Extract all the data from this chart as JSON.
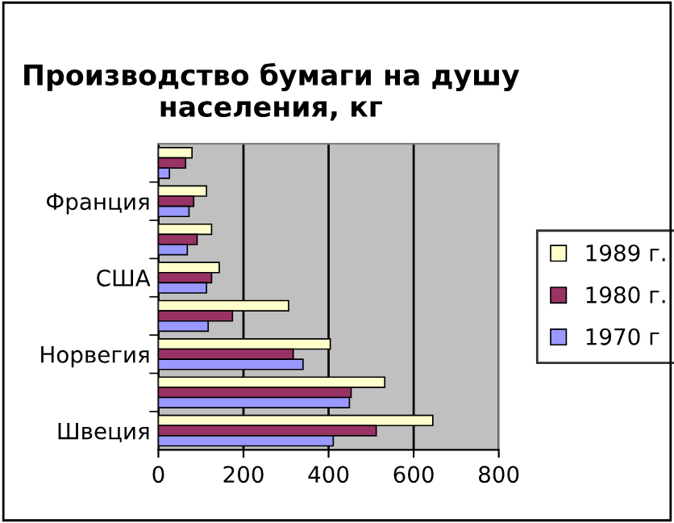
{
  "chart_data": {
    "type": "bar",
    "orientation": "horizontal",
    "title": "Производство бумаги на душу населения, кг",
    "categories": [
      null,
      "Франция",
      null,
      "США",
      null,
      "Норвегия",
      null,
      "Швеция"
    ],
    "series": [
      {
        "name": "1989 г.",
        "color": "#ffffcc",
        "values": [
          79,
          113,
          125,
          143,
          306,
          404,
          532,
          645
        ]
      },
      {
        "name": "1980 г.",
        "color": "#993366",
        "values": [
          64,
          83,
          91,
          125,
          174,
          317,
          453,
          512
        ]
      },
      {
        "name": "1970 г",
        "color": "#9999ff",
        "values": [
          26,
          72,
          68,
          113,
          117,
          340,
          449,
          411
        ]
      }
    ],
    "xlim": [
      0,
      800
    ],
    "xticks": [
      0,
      200,
      400,
      600,
      800
    ],
    "grid": "x",
    "legend": "right"
  }
}
